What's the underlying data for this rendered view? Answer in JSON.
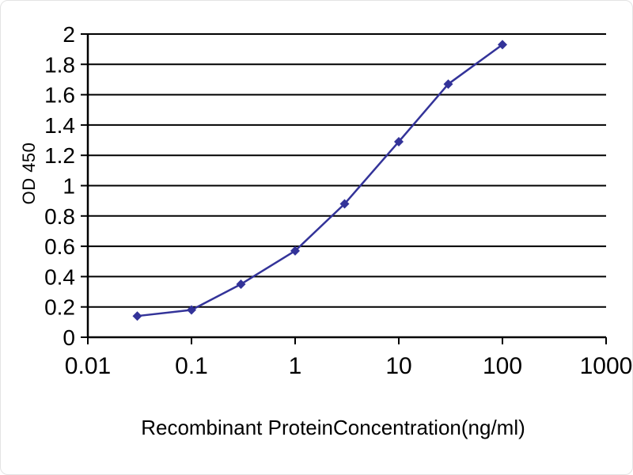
{
  "chart_data": {
    "type": "line",
    "title": "",
    "xlabel": "Recombinant ProteinConcentration(ng/ml)",
    "ylabel": "OD 450",
    "x_scale": "log",
    "xlim": [
      0.01,
      1000
    ],
    "ylim": [
      0,
      2
    ],
    "grid": "horizontal",
    "legend": "none",
    "xticks": [
      0.01,
      0.1,
      1,
      10,
      100,
      1000
    ],
    "xtick_labels": [
      "0.01",
      "0.1",
      "1",
      "10",
      "100",
      "1000"
    ],
    "yticks": [
      0,
      0.2,
      0.4,
      0.6,
      0.8,
      1,
      1.2,
      1.4,
      1.6,
      1.8,
      2
    ],
    "ytick_labels": [
      "0",
      "0.2",
      "0.4",
      "0.6",
      "0.8",
      "1",
      "1.2",
      "1.4",
      "1.6",
      "1.8",
      "2"
    ],
    "series": [
      {
        "name": "OD 450",
        "color": "#333399",
        "marker": "diamond",
        "x": [
          0.03,
          0.1,
          0.3,
          1,
          3,
          10,
          30,
          100
        ],
        "y": [
          0.14,
          0.18,
          0.35,
          0.57,
          0.88,
          1.29,
          1.67,
          1.93
        ]
      }
    ]
  }
}
